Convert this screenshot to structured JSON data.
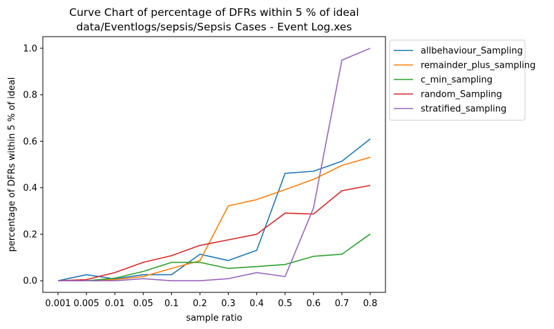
{
  "chart_data": {
    "type": "line",
    "title": "Curve Chart of percentage of DFRs within 5 % of ideal",
    "subtitle": "data/Eventlogs/sepsis/Sepsis Cases - Event Log.xes",
    "xlabel": "sample ratio",
    "ylabel": "percentage of DFRs within 5 % of ideal",
    "categories": [
      "0.001",
      "0.005",
      "0.01",
      "0.05",
      "0.1",
      "0.2",
      "0.3",
      "0.4",
      "0.5",
      "0.6",
      "0.7",
      "0.8"
    ],
    "ylim": [
      -0.05,
      1.05
    ],
    "yticks": [
      "0.0",
      "0.2",
      "0.4",
      "0.6",
      "0.8",
      "1.0"
    ],
    "grid": false,
    "legend_position": "outside-top-right",
    "series": [
      {
        "name": "allbehaviour_Sampling",
        "color": "#1f77b4",
        "values": [
          0.0,
          0.026,
          0.008,
          0.026,
          0.026,
          0.114,
          0.087,
          0.131,
          0.462,
          0.471,
          0.514,
          0.61
        ]
      },
      {
        "name": "remainder_plus_sampling",
        "color": "#ff7f0e",
        "values": [
          0.0,
          0.0,
          0.005,
          0.018,
          0.053,
          0.086,
          0.322,
          0.349,
          0.392,
          0.436,
          0.496,
          0.531
        ]
      },
      {
        "name": "c_min_sampling",
        "color": "#2ca02c",
        "values": [
          0.0,
          0.0,
          0.011,
          0.04,
          0.079,
          0.079,
          0.053,
          0.061,
          0.07,
          0.105,
          0.114,
          0.201
        ]
      },
      {
        "name": "random_Sampling",
        "color": "#d62728",
        "values": [
          0.0,
          0.005,
          0.035,
          0.079,
          0.108,
          0.152,
          0.176,
          0.2,
          0.291,
          0.287,
          0.387,
          0.41
        ]
      },
      {
        "name": "stratified_sampling",
        "color": "#9467bd",
        "values": [
          0.0,
          0.0,
          0.0,
          0.009,
          0.0,
          0.0,
          0.009,
          0.035,
          0.018,
          0.313,
          0.949,
          1.0
        ]
      }
    ]
  }
}
